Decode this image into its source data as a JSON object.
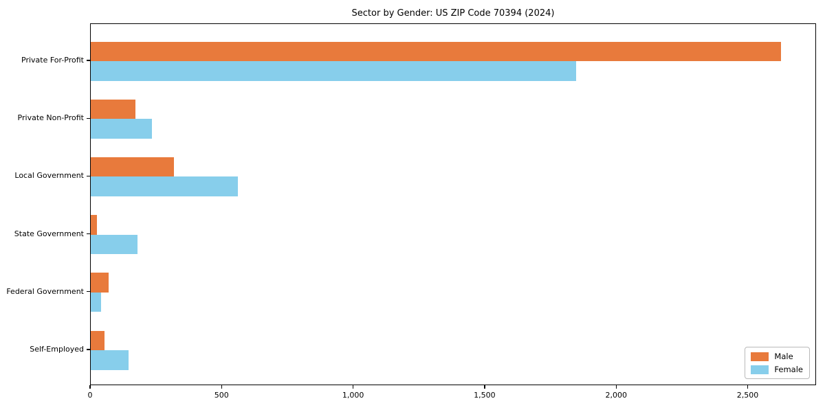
{
  "title": "Sector by Gender: US ZIP Code 70394 (2024)",
  "chart_data": {
    "type": "bar",
    "orientation": "horizontal",
    "title": "Sector by Gender: US ZIP Code 70394 (2024)",
    "categories": [
      "Private For-Profit",
      "Private Non-Profit",
      "Local Government",
      "State Government",
      "Federal Government",
      "Self-Employed"
    ],
    "series": [
      {
        "name": "Male",
        "color": "#E87A3C",
        "values": [
          2625,
          170,
          315,
          24,
          68,
          53
        ]
      },
      {
        "name": "Female",
        "color": "#87CEEB",
        "values": [
          1845,
          233,
          560,
          178,
          40,
          143
        ]
      }
    ],
    "xlim": [
      0,
      2760
    ],
    "xticks": [
      0,
      500,
      1000,
      1500,
      2000,
      2500
    ],
    "xtick_labels": [
      "0",
      "500",
      "1,000",
      "1,500",
      "2,000",
      "2,500"
    ],
    "xlabel": "",
    "ylabel": "",
    "grid": false,
    "legend": {
      "position": "lower right",
      "entries": [
        "Male",
        "Female"
      ]
    }
  }
}
